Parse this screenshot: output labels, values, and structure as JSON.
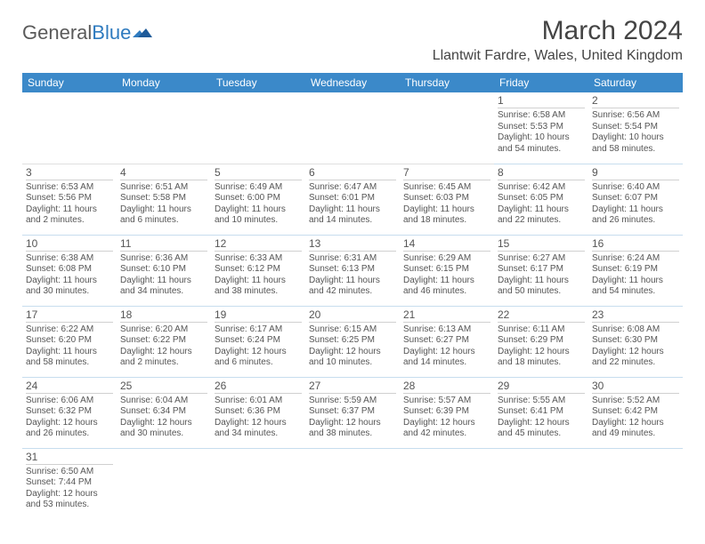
{
  "logo": {
    "text1": "General",
    "text2": "Blue"
  },
  "title": "March 2024",
  "location": "Llantwit Fardre, Wales, United Kingdom",
  "colors": {
    "header_bg": "#3b89c9",
    "header_text": "#ffffff",
    "cell_border": "#c7ddee",
    "text": "#555555",
    "logo_gray": "#5a5a5a",
    "logo_blue": "#2f7bbf"
  },
  "columns": [
    "Sunday",
    "Monday",
    "Tuesday",
    "Wednesday",
    "Thursday",
    "Friday",
    "Saturday"
  ],
  "weeks": [
    [
      null,
      null,
      null,
      null,
      null,
      {
        "d": "1",
        "sr": "6:58 AM",
        "ss": "5:53 PM",
        "dl": "10 hours and 54 minutes."
      },
      {
        "d": "2",
        "sr": "6:56 AM",
        "ss": "5:54 PM",
        "dl": "10 hours and 58 minutes."
      }
    ],
    [
      {
        "d": "3",
        "sr": "6:53 AM",
        "ss": "5:56 PM",
        "dl": "11 hours and 2 minutes."
      },
      {
        "d": "4",
        "sr": "6:51 AM",
        "ss": "5:58 PM",
        "dl": "11 hours and 6 minutes."
      },
      {
        "d": "5",
        "sr": "6:49 AM",
        "ss": "6:00 PM",
        "dl": "11 hours and 10 minutes."
      },
      {
        "d": "6",
        "sr": "6:47 AM",
        "ss": "6:01 PM",
        "dl": "11 hours and 14 minutes."
      },
      {
        "d": "7",
        "sr": "6:45 AM",
        "ss": "6:03 PM",
        "dl": "11 hours and 18 minutes."
      },
      {
        "d": "8",
        "sr": "6:42 AM",
        "ss": "6:05 PM",
        "dl": "11 hours and 22 minutes."
      },
      {
        "d": "9",
        "sr": "6:40 AM",
        "ss": "6:07 PM",
        "dl": "11 hours and 26 minutes."
      }
    ],
    [
      {
        "d": "10",
        "sr": "6:38 AM",
        "ss": "6:08 PM",
        "dl": "11 hours and 30 minutes."
      },
      {
        "d": "11",
        "sr": "6:36 AM",
        "ss": "6:10 PM",
        "dl": "11 hours and 34 minutes."
      },
      {
        "d": "12",
        "sr": "6:33 AM",
        "ss": "6:12 PM",
        "dl": "11 hours and 38 minutes."
      },
      {
        "d": "13",
        "sr": "6:31 AM",
        "ss": "6:13 PM",
        "dl": "11 hours and 42 minutes."
      },
      {
        "d": "14",
        "sr": "6:29 AM",
        "ss": "6:15 PM",
        "dl": "11 hours and 46 minutes."
      },
      {
        "d": "15",
        "sr": "6:27 AM",
        "ss": "6:17 PM",
        "dl": "11 hours and 50 minutes."
      },
      {
        "d": "16",
        "sr": "6:24 AM",
        "ss": "6:19 PM",
        "dl": "11 hours and 54 minutes."
      }
    ],
    [
      {
        "d": "17",
        "sr": "6:22 AM",
        "ss": "6:20 PM",
        "dl": "11 hours and 58 minutes."
      },
      {
        "d": "18",
        "sr": "6:20 AM",
        "ss": "6:22 PM",
        "dl": "12 hours and 2 minutes."
      },
      {
        "d": "19",
        "sr": "6:17 AM",
        "ss": "6:24 PM",
        "dl": "12 hours and 6 minutes."
      },
      {
        "d": "20",
        "sr": "6:15 AM",
        "ss": "6:25 PM",
        "dl": "12 hours and 10 minutes."
      },
      {
        "d": "21",
        "sr": "6:13 AM",
        "ss": "6:27 PM",
        "dl": "12 hours and 14 minutes."
      },
      {
        "d": "22",
        "sr": "6:11 AM",
        "ss": "6:29 PM",
        "dl": "12 hours and 18 minutes."
      },
      {
        "d": "23",
        "sr": "6:08 AM",
        "ss": "6:30 PM",
        "dl": "12 hours and 22 minutes."
      }
    ],
    [
      {
        "d": "24",
        "sr": "6:06 AM",
        "ss": "6:32 PM",
        "dl": "12 hours and 26 minutes."
      },
      {
        "d": "25",
        "sr": "6:04 AM",
        "ss": "6:34 PM",
        "dl": "12 hours and 30 minutes."
      },
      {
        "d": "26",
        "sr": "6:01 AM",
        "ss": "6:36 PM",
        "dl": "12 hours and 34 minutes."
      },
      {
        "d": "27",
        "sr": "5:59 AM",
        "ss": "6:37 PM",
        "dl": "12 hours and 38 minutes."
      },
      {
        "d": "28",
        "sr": "5:57 AM",
        "ss": "6:39 PM",
        "dl": "12 hours and 42 minutes."
      },
      {
        "d": "29",
        "sr": "5:55 AM",
        "ss": "6:41 PM",
        "dl": "12 hours and 45 minutes."
      },
      {
        "d": "30",
        "sr": "5:52 AM",
        "ss": "6:42 PM",
        "dl": "12 hours and 49 minutes."
      }
    ],
    [
      {
        "d": "31",
        "sr": "6:50 AM",
        "ss": "7:44 PM",
        "dl": "12 hours and 53 minutes."
      },
      null,
      null,
      null,
      null,
      null,
      null
    ]
  ],
  "labels": {
    "sunrise": "Sunrise: ",
    "sunset": "Sunset: ",
    "daylight": "Daylight: "
  }
}
